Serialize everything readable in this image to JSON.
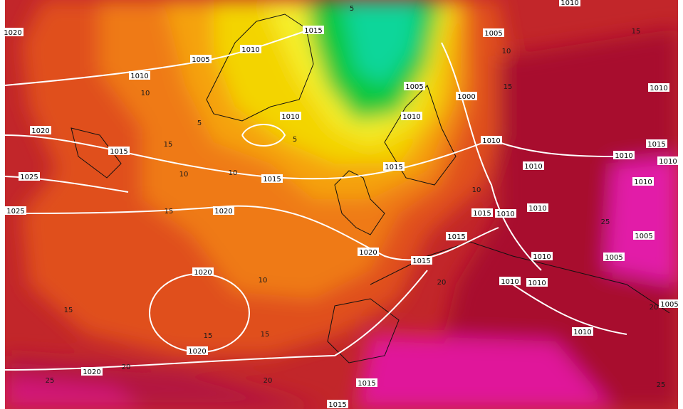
{
  "isobar_labels": [
    "1020",
    "1005",
    "1010",
    "1015",
    "1005",
    "1010",
    "1005",
    "1000",
    "1010",
    "1010",
    "1020",
    "1015",
    "1010",
    "1025",
    "1015",
    "1015",
    "1010",
    "1010",
    "1015",
    "1010",
    "1010",
    "1025",
    "1020",
    "1015",
    "1010",
    "1010",
    "1015",
    "1005",
    "1020",
    "1015",
    "1010",
    "1005",
    "1020",
    "1010",
    "1010",
    "1005",
    "1020",
    "1010",
    "1020",
    "1015",
    "1015",
    "1010",
    "1010"
  ],
  "temperature_labels": [
    "5",
    "10",
    "15",
    "5",
    "5",
    "10",
    "15",
    "10",
    "15",
    "10",
    "10",
    "15",
    "15",
    "15",
    "20",
    "25",
    "20",
    "10",
    "15",
    "20",
    "25",
    "20",
    "25"
  ]
}
